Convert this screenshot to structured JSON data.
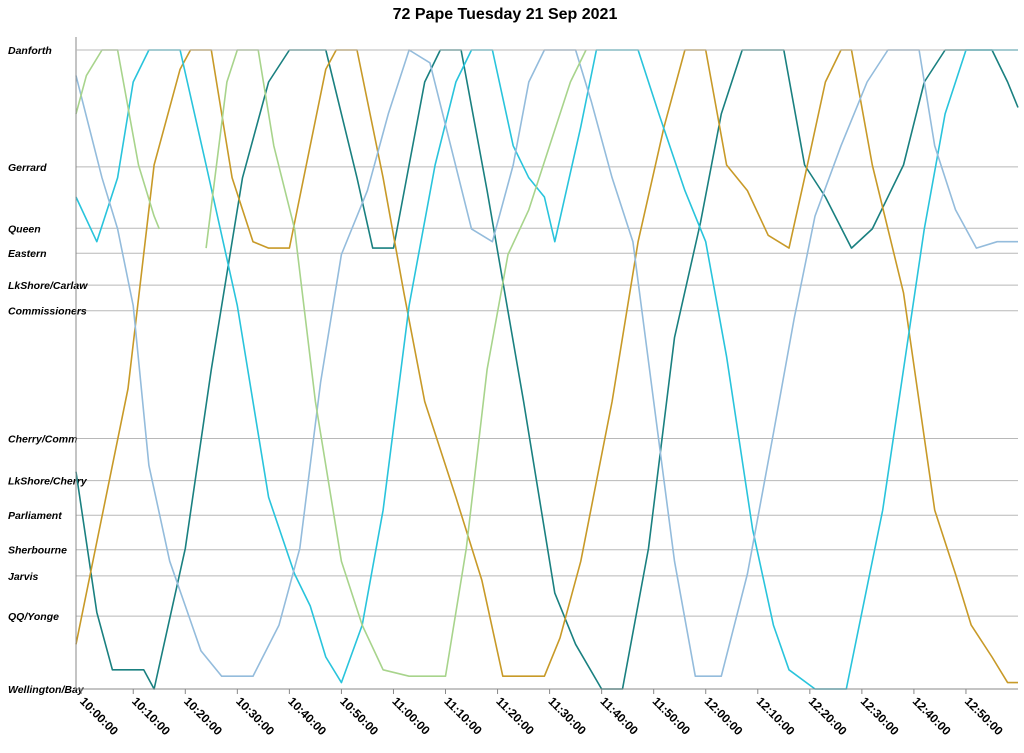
{
  "chart_data": {
    "type": "line",
    "title": "72 Pape Tuesday 21 Sep 2021",
    "xlabel": "",
    "ylabel": "",
    "x_range": [
      "09:59",
      "13:00"
    ],
    "x_ticks": [
      "10:00:00",
      "10:10:00",
      "10:20:00",
      "10:30:00",
      "10:40:00",
      "10:50:00",
      "11:00:00",
      "11:10:00",
      "11:20:00",
      "11:30:00",
      "11:40:00",
      "11:50:00",
      "12:00:00",
      "12:10:00",
      "12:20:00",
      "12:30:00",
      "12:40:00",
      "12:50:00"
    ],
    "stops": [
      {
        "name": "Danforth",
        "pos": 0
      },
      {
        "name": "Gerrard",
        "pos": 18.3
      },
      {
        "name": "Queen",
        "pos": 27.9
      },
      {
        "name": "Eastern",
        "pos": 31.8
      },
      {
        "name": "LkShore/Carlaw",
        "pos": 36.8
      },
      {
        "name": "Commissioners",
        "pos": 40.8
      },
      {
        "name": "Cherry/Comm",
        "pos": 60.8
      },
      {
        "name": "LkShore/Cherry",
        "pos": 67.4
      },
      {
        "name": "Parliament",
        "pos": 72.8
      },
      {
        "name": "Sherbourne",
        "pos": 78.2
      },
      {
        "name": "Jarvis",
        "pos": 82.3
      },
      {
        "name": "QQ/Yonge",
        "pos": 88.6
      },
      {
        "name": "Wellington/Bay",
        "pos": 100
      }
    ],
    "grid": true,
    "series": [
      {
        "color": "#1a8080",
        "points": [
          [
            "09:59",
            66
          ],
          [
            "10:03",
            88
          ],
          [
            "10:06",
            97
          ],
          [
            "10:12",
            97
          ],
          [
            "10:14",
            100
          ],
          [
            "10:20",
            78
          ],
          [
            "10:25",
            50
          ],
          [
            "10:31",
            20
          ],
          [
            "10:36",
            5
          ],
          [
            "10:40",
            0
          ],
          [
            "10:47",
            0
          ],
          [
            "10:53",
            20
          ],
          [
            "10:56",
            31
          ],
          [
            "11:00",
            31
          ],
          [
            "11:03",
            18
          ],
          [
            "11:06",
            5
          ],
          [
            "11:09",
            0
          ],
          [
            "11:13",
            0
          ],
          [
            "11:18",
            22
          ],
          [
            "11:25",
            55
          ],
          [
            "11:31",
            85
          ],
          [
            "11:35",
            93
          ],
          [
            "11:40",
            100
          ],
          [
            "11:44",
            100
          ],
          [
            "11:49",
            78
          ],
          [
            "11:54",
            45
          ],
          [
            "11:59",
            27
          ],
          [
            "12:03",
            10
          ],
          [
            "12:07",
            0
          ],
          [
            "12:15",
            0
          ],
          [
            "12:19",
            18
          ],
          [
            "12:23",
            23
          ],
          [
            "12:28",
            31
          ],
          [
            "12:32",
            28
          ],
          [
            "12:38",
            18
          ],
          [
            "12:42",
            5
          ],
          [
            "12:46",
            0
          ],
          [
            "12:55",
            0
          ],
          [
            "12:58",
            5
          ],
          [
            "13:00",
            9
          ]
        ]
      },
      {
        "color": "#c89a28",
        "points": [
          [
            "09:59",
            93
          ],
          [
            "10:03",
            77
          ],
          [
            "10:09",
            53
          ],
          [
            "10:14",
            18
          ],
          [
            "10:19",
            3
          ],
          [
            "10:21",
            0
          ],
          [
            "10:25",
            0
          ],
          [
            "10:29",
            20
          ],
          [
            "10:33",
            30
          ],
          [
            "10:36",
            31
          ],
          [
            "10:40",
            31
          ],
          [
            "10:44",
            15
          ],
          [
            "10:47",
            3
          ],
          [
            "10:49",
            0
          ],
          [
            "10:53",
            0
          ],
          [
            "10:58",
            20
          ],
          [
            "11:02",
            38
          ],
          [
            "11:06",
            55
          ],
          [
            "11:12",
            70
          ],
          [
            "11:17",
            83
          ],
          [
            "11:21",
            98
          ],
          [
            "11:29",
            98
          ],
          [
            "11:32",
            92
          ],
          [
            "11:36",
            80
          ],
          [
            "11:42",
            55
          ],
          [
            "11:47",
            30
          ],
          [
            "11:52",
            12
          ],
          [
            "11:56",
            0
          ],
          [
            "12:00",
            0
          ],
          [
            "12:04",
            18
          ],
          [
            "12:08",
            22
          ],
          [
            "12:12",
            29
          ],
          [
            "12:16",
            31
          ],
          [
            "12:19",
            20
          ],
          [
            "12:23",
            5
          ],
          [
            "12:26",
            0
          ],
          [
            "12:28",
            0
          ],
          [
            "12:32",
            18
          ],
          [
            "12:38",
            38
          ],
          [
            "12:44",
            72
          ],
          [
            "12:48",
            82
          ],
          [
            "12:51",
            90
          ],
          [
            "12:55",
            95
          ],
          [
            "12:58",
            99
          ],
          [
            "13:00",
            99
          ]
        ]
      },
      {
        "color": "#29c4dc",
        "points": [
          [
            "09:59",
            23
          ],
          [
            "10:03",
            30
          ],
          [
            "10:07",
            20
          ],
          [
            "10:10",
            5
          ],
          [
            "10:13",
            0
          ],
          [
            "10:19",
            0
          ],
          [
            "10:24",
            18
          ],
          [
            "10:30",
            40
          ],
          [
            "10:36",
            70
          ],
          [
            "10:41",
            82
          ],
          [
            "10:44",
            87
          ],
          [
            "10:47",
            95
          ],
          [
            "10:50",
            99
          ],
          [
            "10:54",
            90
          ],
          [
            "10:58",
            72
          ],
          [
            "11:03",
            40
          ],
          [
            "11:08",
            18
          ],
          [
            "11:12",
            5
          ],
          [
            "11:15",
            0
          ],
          [
            "11:19",
            0
          ],
          [
            "11:23",
            15
          ],
          [
            "11:26",
            20
          ],
          [
            "11:29",
            23
          ],
          [
            "11:31",
            30
          ],
          [
            "11:36",
            12
          ],
          [
            "11:39",
            0
          ],
          [
            "11:47",
            0
          ],
          [
            "11:51",
            10
          ],
          [
            "11:56",
            22
          ],
          [
            "12:00",
            30
          ],
          [
            "12:04",
            48
          ],
          [
            "12:09",
            75
          ],
          [
            "12:13",
            90
          ],
          [
            "12:16",
            97
          ],
          [
            "12:21",
            100
          ],
          [
            "12:27",
            100
          ],
          [
            "12:30",
            88
          ],
          [
            "12:34",
            72
          ],
          [
            "12:38",
            50
          ],
          [
            "12:42",
            28
          ],
          [
            "12:46",
            10
          ],
          [
            "12:50",
            0
          ],
          [
            "12:54",
            0
          ],
          [
            "12:57",
            0
          ],
          [
            "13:00",
            0
          ]
        ]
      },
      {
        "color": "#94bcdc",
        "points": [
          [
            "09:59",
            4
          ],
          [
            "10:04",
            20
          ],
          [
            "10:07",
            28
          ],
          [
            "10:10",
            40
          ],
          [
            "10:13",
            65
          ],
          [
            "10:17",
            80
          ],
          [
            "10:20",
            87
          ],
          [
            "10:23",
            94
          ],
          [
            "10:27",
            98
          ],
          [
            "10:33",
            98
          ],
          [
            "10:38",
            90
          ],
          [
            "10:42",
            78
          ],
          [
            "10:46",
            52
          ],
          [
            "10:50",
            32
          ],
          [
            "10:55",
            22
          ],
          [
            "10:59",
            10
          ],
          [
            "11:03",
            0
          ],
          [
            "11:07",
            2
          ],
          [
            "11:11",
            15
          ],
          [
            "11:15",
            28
          ],
          [
            "11:19",
            30
          ],
          [
            "11:23",
            18
          ],
          [
            "11:26",
            5
          ],
          [
            "11:29",
            0
          ],
          [
            "11:35",
            0
          ],
          [
            "11:38",
            8
          ],
          [
            "11:42",
            20
          ],
          [
            "11:46",
            30
          ],
          [
            "11:50",
            55
          ],
          [
            "11:54",
            80
          ],
          [
            "11:58",
            98
          ],
          [
            "12:03",
            98
          ],
          [
            "12:08",
            82
          ],
          [
            "12:13",
            60
          ],
          [
            "12:17",
            42
          ],
          [
            "12:21",
            26
          ],
          [
            "12:26",
            15
          ],
          [
            "12:31",
            5
          ],
          [
            "12:35",
            0
          ],
          [
            "12:41",
            0
          ],
          [
            "12:44",
            15
          ],
          [
            "12:48",
            25
          ],
          [
            "12:52",
            31
          ],
          [
            "12:56",
            30
          ],
          [
            "13:00",
            30
          ]
        ]
      },
      {
        "color": "#a8d48c",
        "segments": [
          [
            [
              "09:59",
              10
            ],
            [
              "10:01",
              4
            ],
            [
              "10:04",
              0
            ],
            [
              "10:07",
              0
            ],
            [
              "10:11",
              18
            ],
            [
              "10:14",
              26
            ],
            [
              "10:15",
              28
            ]
          ],
          [
            [
              "10:24",
              31
            ],
            [
              "10:26",
              18
            ],
            [
              "10:28",
              5
            ],
            [
              "10:30",
              0
            ],
            [
              "10:34",
              0
            ],
            [
              "10:37",
              15
            ],
            [
              "10:41",
              28
            ],
            [
              "10:45",
              55
            ],
            [
              "10:50",
              80
            ],
            [
              "10:54",
              90
            ],
            [
              "10:58",
              97
            ],
            [
              "11:03",
              98
            ],
            [
              "11:10",
              98
            ],
            [
              "11:14",
              78
            ],
            [
              "11:18",
              50
            ],
            [
              "11:22",
              32
            ],
            [
              "11:26",
              25
            ],
            [
              "11:30",
              15
            ],
            [
              "11:34",
              5
            ],
            [
              "11:37",
              0
            ]
          ]
        ]
      }
    ]
  }
}
